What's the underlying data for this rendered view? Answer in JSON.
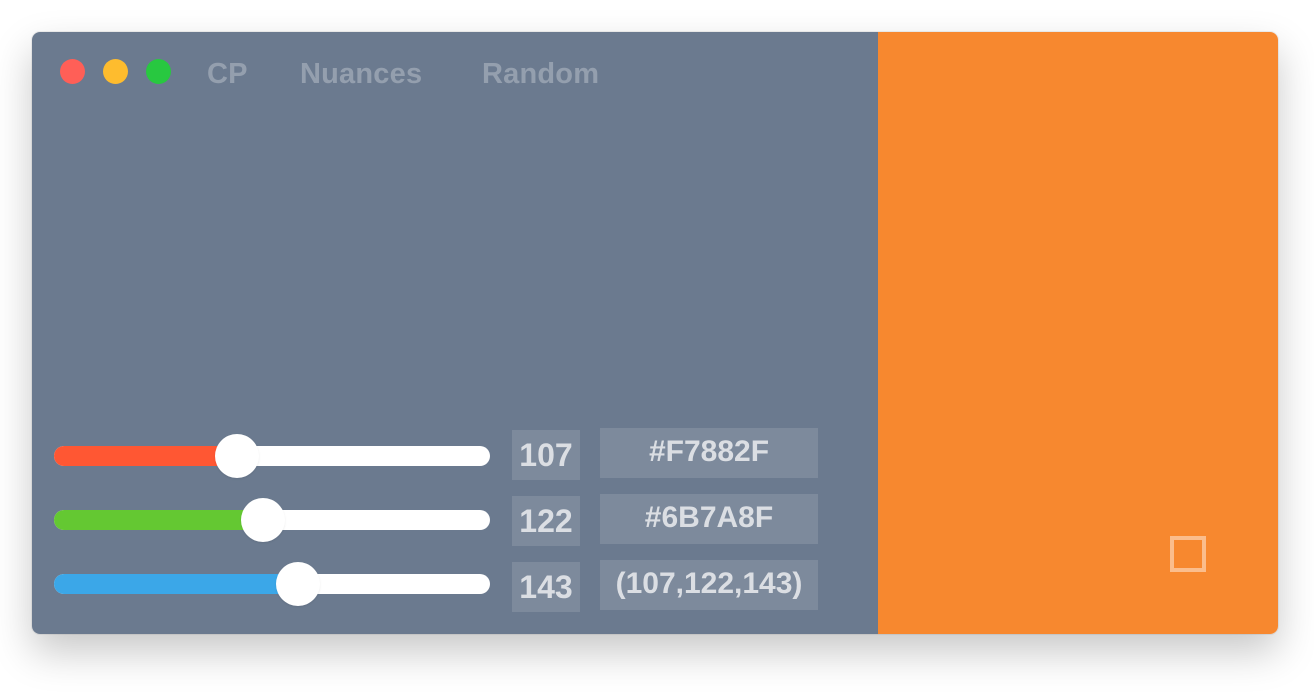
{
  "nav": {
    "tabs": [
      {
        "label": "CP"
      },
      {
        "label": "Nuances"
      },
      {
        "label": "Random"
      }
    ]
  },
  "colors": {
    "panel_background": "#6B7A8F",
    "preview_background": "#F7882F",
    "red_track": "#FF5733",
    "green_track": "#64C832",
    "blue_track": "#3BA7E8"
  },
  "sliders": {
    "red": {
      "value": "107",
      "level_fraction": 0.42
    },
    "green": {
      "value": "122",
      "level_fraction": 0.48
    },
    "blue": {
      "value": "143",
      "level_fraction": 0.56
    }
  },
  "codes": {
    "hex_primary": "#F7882F",
    "hex_secondary": "#6B7A8F",
    "rgb": "(107,122,143)"
  }
}
